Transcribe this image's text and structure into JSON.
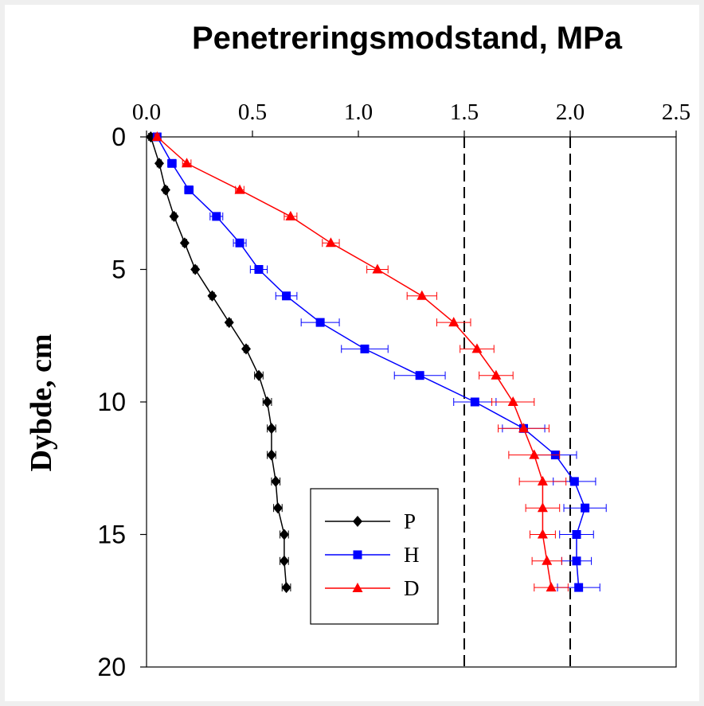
{
  "chart_data": {
    "type": "line",
    "title": "Penetreringsmodstand, MPa",
    "xlabel": "",
    "ylabel": "Dybde, cm",
    "xlim": [
      0,
      2.5
    ],
    "ylim": [
      20,
      0
    ],
    "x_axis_position": "top",
    "y_inverted": true,
    "x_ticks": [
      "0.0",
      "0.5",
      "1.0",
      "1.5",
      "2.0",
      "2.5"
    ],
    "x_tick_values": [
      0,
      0.5,
      1.0,
      1.5,
      2.0,
      2.5
    ],
    "y_ticks": [
      "0",
      "5",
      "10",
      "15",
      "20"
    ],
    "y_tick_values": [
      0,
      5,
      10,
      15,
      20
    ],
    "grid": false,
    "legend_position": "lower-center",
    "reference_lines": [
      {
        "x": 1.5,
        "style": "dashed"
      },
      {
        "x": 2.0,
        "style": "dashed"
      }
    ],
    "series": [
      {
        "name": "P",
        "color": "#000000",
        "marker": "diamond",
        "depth": [
          0,
          1,
          2,
          3,
          4,
          5,
          6,
          7,
          8,
          9,
          10,
          11,
          12,
          13,
          14,
          15,
          16,
          17
        ],
        "x": [
          0.02,
          0.06,
          0.09,
          0.13,
          0.18,
          0.23,
          0.31,
          0.39,
          0.47,
          0.53,
          0.57,
          0.59,
          0.59,
          0.61,
          0.62,
          0.65,
          0.65,
          0.66
        ],
        "xerr": [
          0.01,
          0.01,
          0.01,
          0.01,
          0.01,
          0.01,
          0.01,
          0.01,
          0.01,
          0.02,
          0.02,
          0.02,
          0.02,
          0.02,
          0.02,
          0.02,
          0.02,
          0.02
        ]
      },
      {
        "name": "H",
        "color": "#0000ff",
        "marker": "square",
        "depth": [
          0,
          1,
          2,
          3,
          4,
          5,
          6,
          7,
          8,
          9,
          10,
          11,
          12,
          13,
          14,
          15,
          16,
          17
        ],
        "x": [
          0.05,
          0.12,
          0.2,
          0.33,
          0.44,
          0.53,
          0.66,
          0.82,
          1.03,
          1.29,
          1.55,
          1.78,
          1.93,
          2.02,
          2.07,
          2.03,
          2.03,
          2.04
        ],
        "xerr": [
          0.01,
          0.02,
          0.02,
          0.03,
          0.03,
          0.04,
          0.05,
          0.09,
          0.11,
          0.12,
          0.1,
          0.1,
          0.1,
          0.1,
          0.1,
          0.08,
          0.07,
          0.1
        ]
      },
      {
        "name": "D",
        "color": "#ff0000",
        "marker": "triangle",
        "depth": [
          0,
          1,
          2,
          3,
          4,
          5,
          6,
          7,
          8,
          9,
          10,
          11,
          12,
          13,
          14,
          15,
          16,
          17
        ],
        "x": [
          0.05,
          0.19,
          0.44,
          0.68,
          0.87,
          1.09,
          1.3,
          1.45,
          1.56,
          1.65,
          1.73,
          1.78,
          1.83,
          1.87,
          1.87,
          1.87,
          1.89,
          1.91
        ],
        "xerr": [
          0.01,
          0.02,
          0.02,
          0.03,
          0.04,
          0.05,
          0.07,
          0.08,
          0.08,
          0.08,
          0.1,
          0.12,
          0.12,
          0.11,
          0.08,
          0.06,
          0.07,
          0.08
        ]
      }
    ]
  }
}
